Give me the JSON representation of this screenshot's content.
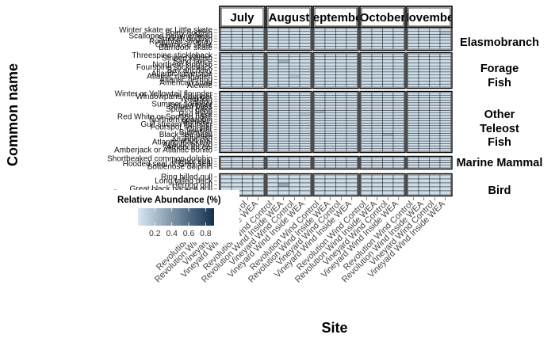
{
  "chart_data": {
    "type": "heatmap",
    "title": "",
    "xlabel": "Site",
    "ylabel": "Common name",
    "months": [
      "July",
      "August",
      "September",
      "October",
      "November"
    ],
    "sites": [
      "Revolution Wind Control",
      "Revolution Wind Inside WEA",
      "Vineyard Wind Control",
      "Vineyard Wind Inside WEA"
    ],
    "groups": [
      {
        "name": "Elasmobranch",
        "species": [
          "Winter skate or Little skate",
          "Spiny dogfish",
          "Scalloped hammerhead",
          "Smooth dogfish",
          "Roughtail stingray",
          "Clearnose skate",
          "Barndoor skate"
        ]
      },
      {
        "name": "Forage Fish",
        "species": [
          "Threespine stickleback",
          "Striped killifish",
          "Sand lance",
          "Northern kingfish",
          "Fourspine stickleback",
          "Bay anchovy",
          "Atlantic silverside",
          "Atlantic menhaden",
          "Atlantic herring",
          "American shad",
          "Alewife"
        ]
      },
      {
        "name": "Other Teleost Fish",
        "species": [
          "Winter or Yellowtail flounder",
          "Windowpane flounder",
          "Weakfish",
          "Tautog",
          "Summer flounder",
          "Striped bass",
          "Spotted hake",
          "Scup",
          "Red hake",
          "Red White or Spotted hake",
          "Northern searobin",
          "Monkfish",
          "Gulf stream flounder",
          "Fourspot flounder",
          "Cunner",
          "Butterfish",
          "Black sea bass",
          "Bluefish",
          "Atlantic cod",
          "Atlantic mackerel",
          "Atlantic bonito",
          "American eel",
          "Amberjack or Atlantic bonito"
        ]
      },
      {
        "name": "Marine Mammal",
        "species": [
          "Shortbeaked common dolphin",
          "Harbor seal",
          "Hooded seal or Grey seal",
          "Bottlenose dolphin"
        ]
      },
      {
        "name": "Bird",
        "species": [
          "Ring billed gull",
          "Long tailed duck",
          "Herring gull",
          "Great black backed gull",
          "Common eider or bufflehead"
        ]
      }
    ],
    "legend": {
      "title": "Relative Abundance (%)",
      "ticks": [
        0.2,
        0.4,
        0.6,
        0.8
      ],
      "range": [
        0,
        0.9
      ],
      "color_low": "#d7e7f3",
      "color_high": "#12304d",
      "placement": "bottom-left"
    },
    "highlights": [
      {
        "group": "Elasmobranch",
        "species": "Spiny dogfish",
        "month": "November",
        "site": "Vineyard Wind Inside WEA",
        "value": 0.2
      },
      {
        "group": "Forage Fish",
        "species": "Sand lance",
        "month": "August",
        "site": "Revolution Wind Inside WEA",
        "value": 0.25
      },
      {
        "group": "Forage Fish",
        "species": "Atlantic menhaden",
        "month": "August",
        "site": "Vineyard Wind Control",
        "value": 0.15
      },
      {
        "group": "Other Teleost Fish",
        "species": "Scup",
        "month": "September",
        "site": "Revolution Wind Control",
        "value": 0.2
      },
      {
        "group": "Other Teleost Fish",
        "species": "Red hake",
        "month": "August",
        "site": "Vineyard Wind Inside WEA",
        "value": 0.15
      },
      {
        "group": "Other Teleost Fish",
        "species": "Black sea bass",
        "month": "October",
        "site": "Vineyard Wind Control",
        "value": 0.2
      },
      {
        "group": "Bird",
        "species": "Herring gull",
        "month": "August",
        "site": "Revolution Wind Inside WEA",
        "value": 0.3
      }
    ],
    "background_value": 0.05
  }
}
